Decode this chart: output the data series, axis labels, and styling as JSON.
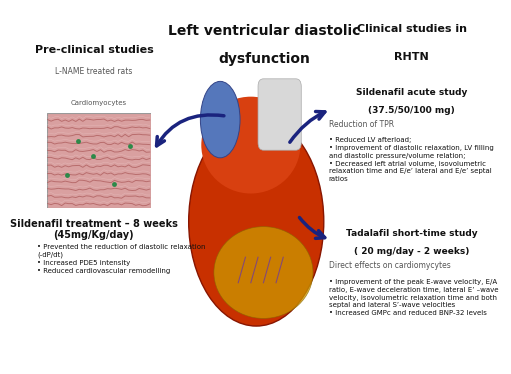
{
  "bg_color": "#ffffff",
  "title_center_line1": "Left ventricular diastolic",
  "title_center_line2": "dysfunction",
  "title_left": "Pre-clinical studies",
  "title_left_sub": "L-NAME treated rats",
  "title_right_line1": "Clinical studies in",
  "title_right_line2": "RHTN",
  "cardiomyocytes_label": "Cardiomyocytes",
  "sildenafil_treatment": "Sildenafil treatment – 8 weeks\n(45mg/Kg/day)",
  "left_bullets": "• Prevented the reduction of diastolic relaxation\n(-dP/dt)\n• Increased PDE5 intensity\n• Reduced cardiovascular remodelling",
  "sildenafil_acute_line1": "Sildenafil acute study",
  "sildenafil_acute_line2": "(37.5/50/100 mg)",
  "reduction_tpr": "Reduction of TPR",
  "right_bullets_top": "• Reduced LV afterload;\n• Improvement of diastolic relaxation, LV filling\nand diastolic pressure/volume relation;\n• Decreased left atrial volume, isovolumetric\nrelaxation time and E/e’ lateral and E/e’ septal\nratios",
  "tadalafil_line1": "Tadalafil short-time study",
  "tadalafil_line2": "( 20 mg/day - 2 weeks)",
  "direct_effects": "Direct effects on cardiomycytes",
  "right_bullets_bot": "• Improvement of the peak E-wave velocity, E/A\nratio, E-wave deceleration time, lateral E’ –wave\nvelocity, isovolumetric relaxation time and both\nseptal and lateral S’-wave velocities\n• Increased GMPc and reduced BNP-32 levels",
  "arrow_color": "#1a237e",
  "text_color": "#111111",
  "gray_color": "#555555"
}
